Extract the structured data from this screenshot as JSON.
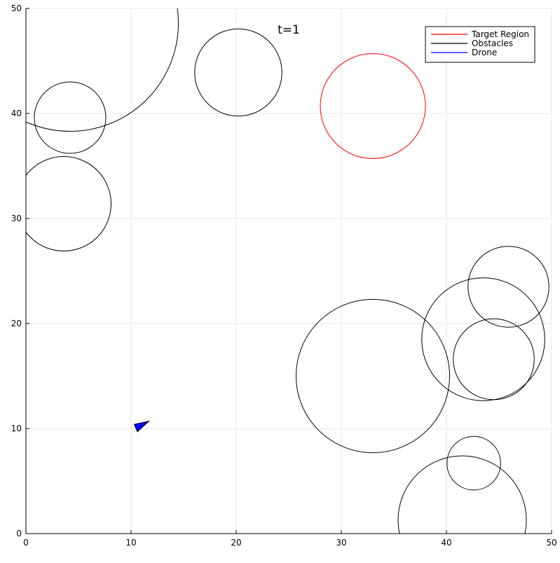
{
  "chart_data": {
    "type": "scatter",
    "title": "",
    "annotation": "t=1",
    "xlabel": "",
    "ylabel": "",
    "xlim": [
      0,
      50
    ],
    "ylim": [
      0,
      50
    ],
    "xticks": [
      0,
      10,
      20,
      30,
      40,
      50
    ],
    "yticks": [
      0,
      10,
      20,
      30,
      40,
      50
    ],
    "grid": true,
    "legend_position": "top-right",
    "series": [
      {
        "name": "Target Region",
        "color": "#ff0000",
        "circles": [
          {
            "cx": 33.0,
            "cy": 40.7,
            "r": 5.0
          }
        ]
      },
      {
        "name": "Obstacles",
        "color": "#000000",
        "circles": [
          {
            "cx": 4.2,
            "cy": 48.6,
            "r": 10.3
          },
          {
            "cx": 4.2,
            "cy": 39.6,
            "r": 3.4
          },
          {
            "cx": 3.6,
            "cy": 31.4,
            "r": 4.5
          },
          {
            "cx": 20.2,
            "cy": 43.9,
            "r": 4.15
          },
          {
            "cx": 33.0,
            "cy": 15.0,
            "r": 7.3
          },
          {
            "cx": 43.5,
            "cy": 18.5,
            "r": 5.85
          },
          {
            "cx": 45.9,
            "cy": 23.5,
            "r": 3.85
          },
          {
            "cx": 44.5,
            "cy": 16.6,
            "r": 3.85
          },
          {
            "cx": 42.6,
            "cy": 6.7,
            "r": 2.55
          },
          {
            "cx": 41.5,
            "cy": 1.3,
            "r": 6.1
          }
        ]
      },
      {
        "name": "Drone",
        "color": "#0000ff",
        "polygon": [
          [
            10.3,
            10.4
          ],
          [
            11.7,
            10.7
          ],
          [
            10.6,
            9.7
          ]
        ]
      }
    ]
  }
}
